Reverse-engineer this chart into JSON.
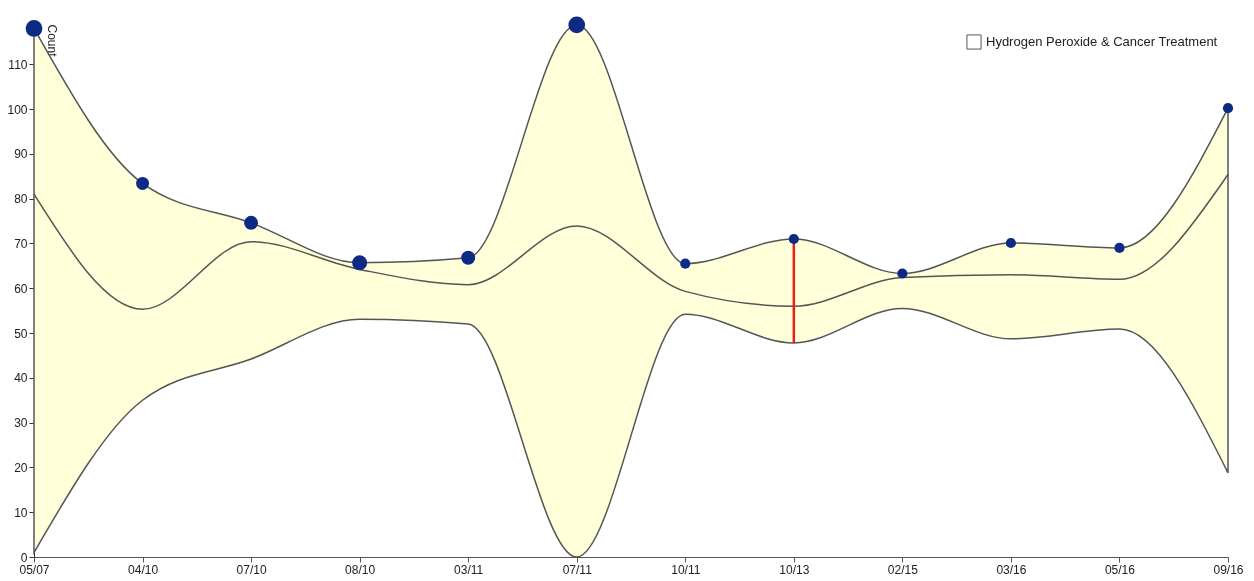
{
  "chart_data": {
    "type": "line",
    "ylabel": "Count",
    "categories": [
      "05/07",
      "04/10",
      "07/10",
      "08/10",
      "03/11",
      "07/11",
      "10/11",
      "10/13",
      "02/15",
      "03/16",
      "05/16",
      "09/16"
    ],
    "ylim": [
      0,
      119
    ],
    "yticks": [
      0,
      10,
      20,
      30,
      40,
      50,
      60,
      70,
      80,
      90,
      100,
      110
    ],
    "grid": false,
    "legend": "top right",
    "series": [
      {
        "name": "Hydrogen Peroxide & Cancer Treatment",
        "color": "#555555",
        "values": [
          81,
          55.3,
          70.4,
          64.2,
          60.8,
          73.9,
          59.3,
          56,
          62.4,
          63,
          62,
          85.4
        ],
        "lower": [
          1,
          35,
          44.2,
          53.1,
          52,
          0,
          54.2,
          47.8,
          55.5,
          48.7,
          50.9,
          18.8
        ],
        "upper": [
          118,
          83.4,
          74.6,
          65.7,
          66.8,
          118.8,
          65.5,
          71,
          63.3,
          70.1,
          69,
          100.2
        ],
        "errors": [
          null,
          null,
          null,
          null,
          null,
          null,
          null,
          [
            47.8,
            71
          ],
          null,
          null,
          null,
          null
        ]
      },
      {
        "type": "bubble",
        "color": "#0d2a85",
        "values": [
          118,
          83.4,
          74.6,
          65.7,
          66.8,
          118.8,
          65.5,
          71,
          63.3,
          70.1,
          69,
          100.2
        ],
        "sizes": [
          1,
          0.6,
          0.7,
          0.8,
          0.7,
          1,
          0.37,
          0.37,
          0.37,
          0.37,
          0.37,
          0.37
        ]
      }
    ]
  }
}
